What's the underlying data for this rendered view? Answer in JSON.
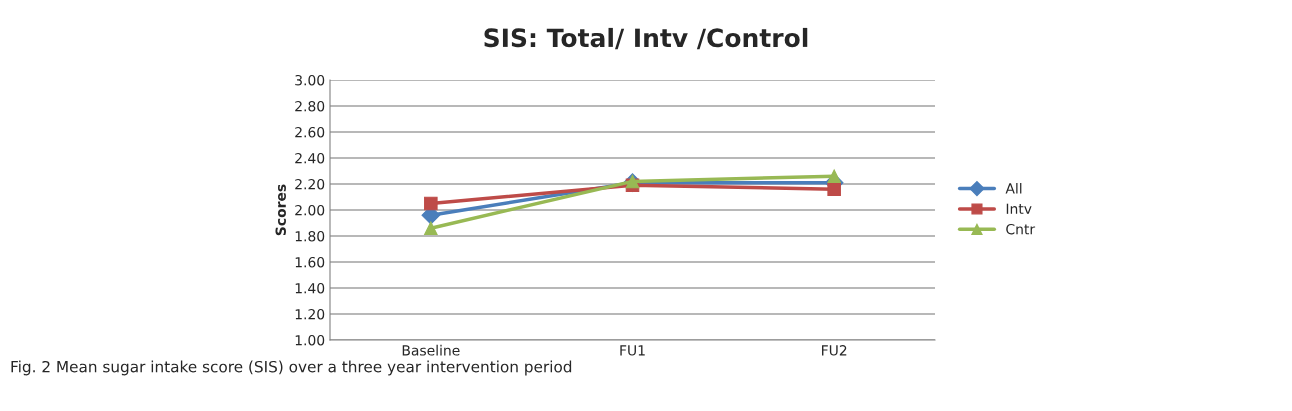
{
  "chart_data": {
    "type": "line",
    "title": "SIS: Total/ Intv /Control",
    "ylabel": "Scores",
    "categories": [
      "Baseline",
      "FU1",
      "FU2"
    ],
    "series": [
      {
        "name": "All",
        "color": "#4a7ebb",
        "marker": "diamond",
        "values": [
          1.96,
          2.21,
          2.21
        ]
      },
      {
        "name": "Intv",
        "color": "#be4b48",
        "marker": "square",
        "values": [
          2.05,
          2.19,
          2.16
        ]
      },
      {
        "name": "Cntr",
        "color": "#98b954",
        "marker": "triangle",
        "values": [
          1.86,
          2.22,
          2.26
        ]
      }
    ],
    "ylim": [
      1.0,
      3.0
    ],
    "yticks": [
      {
        "value": 1.0,
        "label": "1.00"
      },
      {
        "value": 1.2,
        "label": "1.20"
      },
      {
        "value": 1.4,
        "label": "1.40"
      },
      {
        "value": 1.6,
        "label": "1.60"
      },
      {
        "value": 1.8,
        "label": "1.80"
      },
      {
        "value": 2.0,
        "label": "2.00"
      },
      {
        "value": 2.2,
        "label": "2.20"
      },
      {
        "value": 2.4,
        "label": "2.40"
      },
      {
        "value": 2.6,
        "label": "2.60"
      },
      {
        "value": 2.8,
        "label": "2.80"
      },
      {
        "value": 3.0,
        "label": "3.00"
      }
    ],
    "grid": "y",
    "legend": "right",
    "line_style": "solid",
    "annotations": [
      "Fig. 2 Mean sugar intake score (SIS) over a three year intervention period"
    ]
  }
}
